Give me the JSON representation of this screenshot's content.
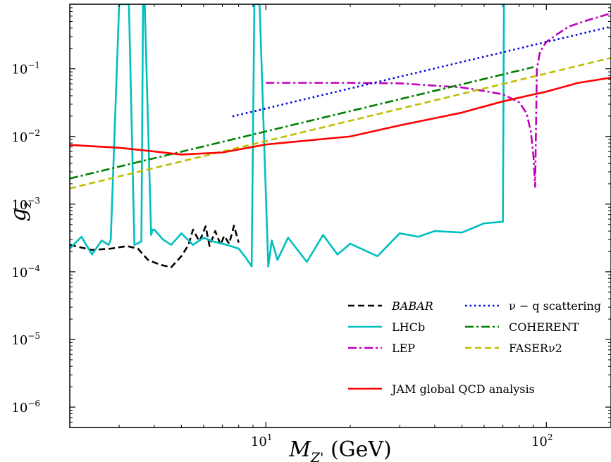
{
  "chart_data": {
    "type": "line",
    "xlabel": "M_{Z'} (GeV)",
    "ylabel": "g_z",
    "xscale": "log",
    "yscale": "log",
    "xlim": [
      2.0,
      170.0
    ],
    "ylim": [
      5e-07,
      0.9
    ],
    "grid": false,
    "legend_position": "bottom-right",
    "x_ticks": [
      {
        "value": 10,
        "base": "10",
        "exp": "1"
      },
      {
        "value": 100,
        "base": "10",
        "exp": "2"
      }
    ],
    "y_ticks": [
      {
        "value": 1e-06,
        "base": "10",
        "exp": "−6"
      },
      {
        "value": 1e-05,
        "base": "10",
        "exp": "−5"
      },
      {
        "value": 0.0001,
        "base": "10",
        "exp": "−4"
      },
      {
        "value": 0.001,
        "base": "10",
        "exp": "−3"
      },
      {
        "value": 0.01,
        "base": "10",
        "exp": "−2"
      },
      {
        "value": 0.1,
        "base": "10",
        "exp": "−1"
      }
    ],
    "series": [
      {
        "name": "BABAR",
        "color": "#000000",
        "dash": "dashed",
        "x": [
          2.0,
          2.4,
          2.8,
          3.2,
          3.5,
          3.8,
          4.2,
          4.6,
          5.0,
          5.3,
          5.5,
          5.8,
          6.1,
          6.3,
          6.6,
          6.9,
          7.1,
          7.4,
          7.7,
          8.0
        ],
        "y": [
          0.00025,
          0.00021,
          0.00022,
          0.00024,
          0.00022,
          0.00015,
          0.000127,
          0.000117,
          0.00017,
          0.00025,
          0.00042,
          0.00028,
          0.00047,
          0.00024,
          0.0004,
          0.00025,
          0.00034,
          0.00026,
          0.00048,
          0.00027
        ]
      },
      {
        "name": "LHCb",
        "color": "#00bfbf",
        "dash": "solid",
        "x": [
          2.0,
          2.2,
          2.4,
          2.6,
          2.75,
          2.8,
          3.0,
          3.05,
          3.1,
          3.25,
          3.4,
          3.6,
          3.65,
          3.7,
          3.9,
          3.95,
          4.0,
          4.3,
          4.6,
          5.0,
          5.5,
          6.0,
          6.5,
          7.0,
          7.5,
          8.0,
          8.5,
          8.9,
          9.1,
          9.3,
          9.5,
          10.2,
          10.5,
          11,
          12,
          14,
          16,
          18,
          20,
          25,
          30,
          35,
          40,
          50,
          60,
          70,
          70.6
        ],
        "y": [
          0.00022,
          0.00033,
          0.00018,
          0.00029,
          0.00025,
          0.0003,
          0.9,
          0.9,
          0.9,
          0.9,
          0.00025,
          0.00028,
          0.9,
          0.9,
          0.00035,
          0.00042,
          0.00042,
          0.0003,
          0.00025,
          0.00037,
          0.00025,
          0.00032,
          0.00028,
          0.00026,
          0.00024,
          0.00022,
          0.00016,
          0.00012,
          0.9,
          0.9,
          0.9,
          0.00012,
          0.00029,
          0.00015,
          0.00032,
          0.00014,
          0.00035,
          0.00018,
          0.00026,
          0.00017,
          0.00037,
          0.00033,
          0.0004,
          0.00038,
          0.00052,
          0.00055,
          0.9
        ]
      },
      {
        "name": "LEP",
        "color": "#bf00bf",
        "dash": "dash-dot",
        "x": [
          10,
          20,
          30,
          50,
          60,
          70,
          80,
          85,
          88,
          90,
          91.2,
          92.5,
          95,
          100,
          110,
          120,
          140,
          170
        ],
        "y": [
          0.062,
          0.062,
          0.061,
          0.053,
          0.047,
          0.042,
          0.032,
          0.022,
          0.012,
          0.005,
          0.0018,
          0.1,
          0.18,
          0.25,
          0.33,
          0.42,
          0.52,
          0.66
        ]
      },
      {
        "name": "ν − q scattering",
        "color": "#0000dd",
        "dash": "dotted",
        "x": [
          7.6,
          170
        ],
        "y": [
          0.0198,
          0.42
        ]
      },
      {
        "name": "COHERENT",
        "color": "#008000",
        "dash": "dash-dot",
        "x": [
          2.0,
          90.0
        ],
        "y": [
          0.00239,
          0.106
        ]
      },
      {
        "name": "FASERν2",
        "color": "#bfbf00",
        "dash": "dashed",
        "x": [
          2.0,
          170.0
        ],
        "y": [
          0.00171,
          0.145
        ]
      },
      {
        "name": "JAM global QCD analysis",
        "color": "#ff0000",
        "dash": "solid",
        "x": [
          2.0,
          3.0,
          4.0,
          5.0,
          7.0,
          10.0,
          20.0,
          30.0,
          50.0,
          70.0,
          100.0,
          130.0,
          170.0
        ],
        "y": [
          0.0075,
          0.0068,
          0.006,
          0.0054,
          0.0058,
          0.0076,
          0.01,
          0.0146,
          0.0225,
          0.033,
          0.046,
          0.062,
          0.074
        ]
      }
    ]
  }
}
